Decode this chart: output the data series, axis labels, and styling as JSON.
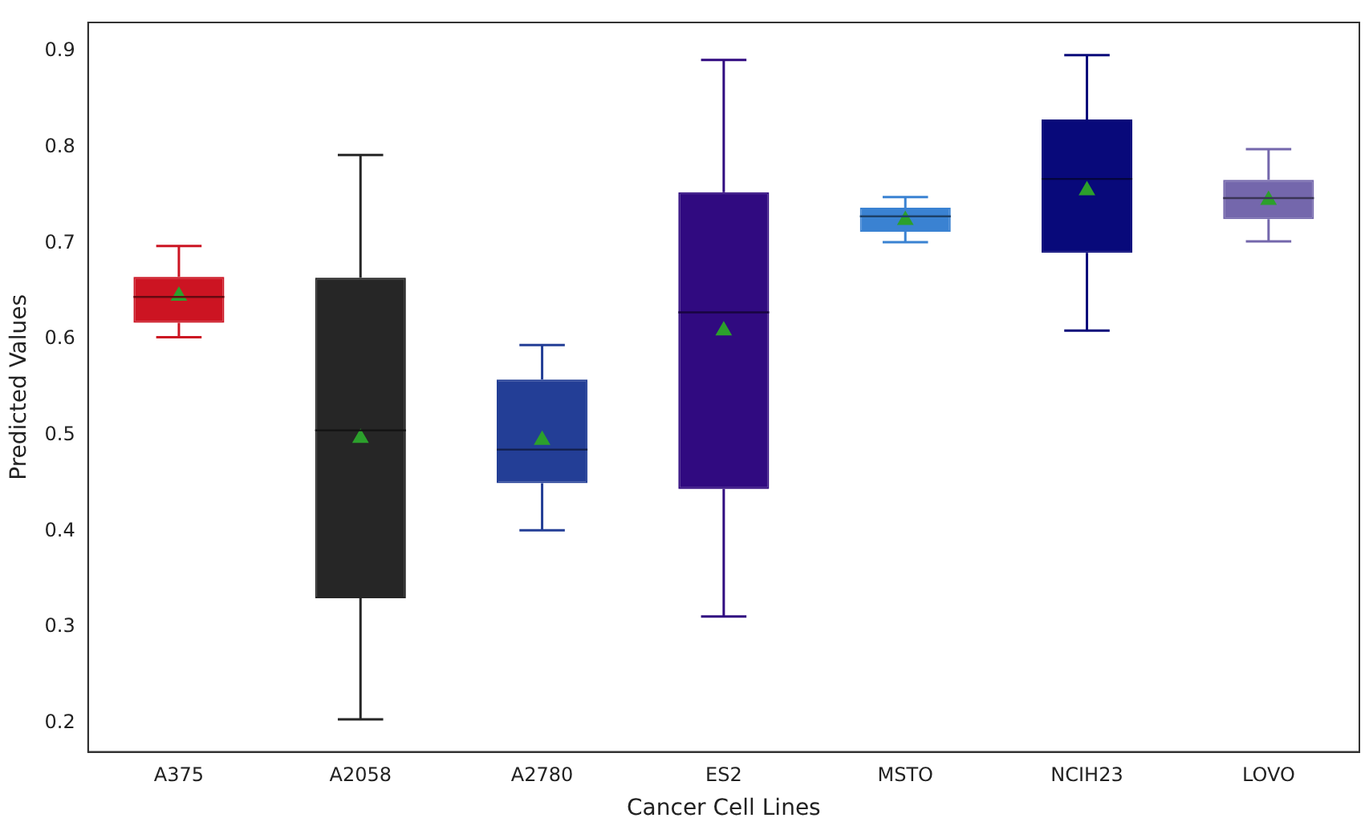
{
  "chart_data": {
    "type": "box",
    "xlabel": "Cancer Cell Lines",
    "ylabel": "Predicted Values",
    "categories": [
      "A375",
      "A2058",
      "A2780",
      "ES2",
      "MSTO",
      "NCIH23",
      "LOVO"
    ],
    "colors": [
      "#cc1422",
      "#262626",
      "#233e96",
      "#300a80",
      "#3a82d2",
      "#08097a",
      "#7467ac"
    ],
    "boxes": [
      {
        "low": 0.602,
        "q1": 0.617,
        "median": 0.644,
        "q3": 0.665,
        "high": 0.697,
        "mean": 0.645
      },
      {
        "low": 0.204,
        "q1": 0.33,
        "median": 0.505,
        "q3": 0.664,
        "high": 0.792,
        "mean": 0.497
      },
      {
        "low": 0.401,
        "q1": 0.45,
        "median": 0.485,
        "q3": 0.558,
        "high": 0.594,
        "mean": 0.495
      },
      {
        "low": 0.311,
        "q1": 0.444,
        "median": 0.628,
        "q3": 0.753,
        "high": 0.891,
        "mean": 0.609
      },
      {
        "low": 0.701,
        "q1": 0.712,
        "median": 0.728,
        "q3": 0.737,
        "high": 0.748,
        "mean": 0.724
      },
      {
        "low": 0.609,
        "q1": 0.69,
        "median": 0.767,
        "q3": 0.829,
        "high": 0.896,
        "mean": 0.755
      },
      {
        "low": 0.702,
        "q1": 0.725,
        "median": 0.747,
        "q3": 0.766,
        "high": 0.798,
        "mean": 0.745
      }
    ],
    "ylim": [
      0.17,
      0.93
    ],
    "yticks": [
      0.2,
      0.3,
      0.4,
      0.5,
      0.6,
      0.7,
      0.8,
      0.9
    ],
    "grid": false,
    "legend": false,
    "marker": "triangle"
  }
}
